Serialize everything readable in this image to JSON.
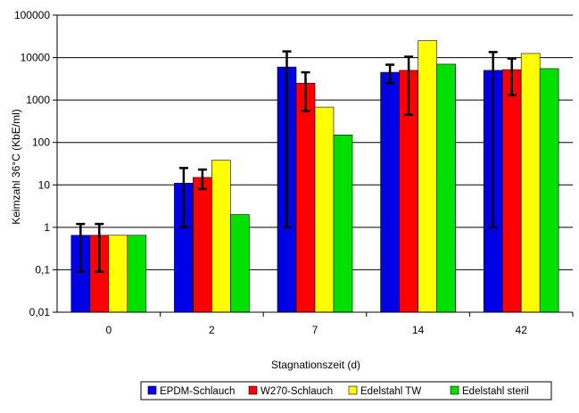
{
  "colors": {
    "EPDM-Schlauch": "#0000e6",
    "W270-Schlauch": "#ff0000",
    "Edelstahl TW": "#ffff00",
    "Edelstahl steril": "#00e000",
    "axis": "#000000",
    "grid": "#000000"
  },
  "chart_data": {
    "type": "bar",
    "title": "",
    "xlabel": "Stagnationszeit (d)",
    "ylabel": "Keimzahl 36°C (KbE/ml)",
    "yscale": "log",
    "ylim": [
      0.01,
      100000
    ],
    "yticks": [
      0.01,
      0.1,
      1,
      10,
      100,
      1000,
      10000,
      100000
    ],
    "ytick_labels": [
      "0,01",
      "0,1",
      "1",
      "10",
      "100",
      "1000",
      "10000",
      "100000"
    ],
    "grid": "horizontal",
    "legend_position": "bottom-right",
    "categories": [
      "0",
      "2",
      "7",
      "14",
      "42"
    ],
    "series": [
      {
        "name": "EPDM-Schlauch",
        "values": [
          0.65,
          11,
          6000,
          4500,
          5000
        ],
        "error_low": [
          0.09,
          1,
          1,
          2500,
          1
        ],
        "error_high": [
          1.2,
          25,
          14000,
          6800,
          13500
        ]
      },
      {
        "name": "W270-Schlauch",
        "values": [
          0.65,
          15,
          2500,
          5000,
          5200
        ],
        "error_low": [
          0.09,
          8,
          550,
          450,
          1300
        ],
        "error_high": [
          1.2,
          23,
          4500,
          10500,
          9500
        ]
      },
      {
        "name": "Edelstahl TW",
        "values": [
          0.65,
          38,
          680,
          25000,
          12500
        ]
      },
      {
        "name": "Edelstahl steril",
        "values": [
          0.65,
          2,
          150,
          7000,
          5500
        ]
      }
    ]
  }
}
